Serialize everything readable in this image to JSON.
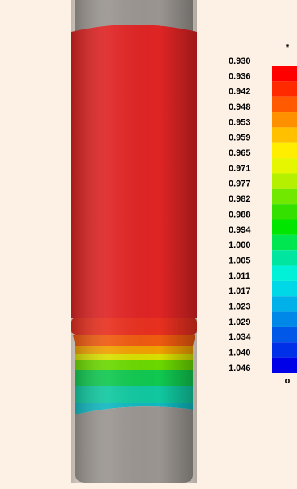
{
  "legend": {
    "top_symbol": "*",
    "bottom_symbol": "o",
    "labels": [
      "0.930",
      "0.936",
      "0.942",
      "0.948",
      "0.953",
      "0.959",
      "0.965",
      "0.971",
      "0.977",
      "0.982",
      "0.988",
      "0.994",
      "1.000",
      "1.005",
      "1.011",
      "1.017",
      "1.023",
      "1.029",
      "1.034",
      "1.040",
      "1.046"
    ],
    "colors": [
      "#ff0000",
      "#ff2a00",
      "#ff5a00",
      "#ff9000",
      "#ffc000",
      "#ffee00",
      "#e6f500",
      "#b4f000",
      "#70e800",
      "#33e000",
      "#00e600",
      "#00e650",
      "#00e6a0",
      "#00f0d8",
      "#00d8e8",
      "#00b0e8",
      "#0088e8",
      "#0058e8",
      "#0030e8",
      "#0000e8"
    ]
  }
}
